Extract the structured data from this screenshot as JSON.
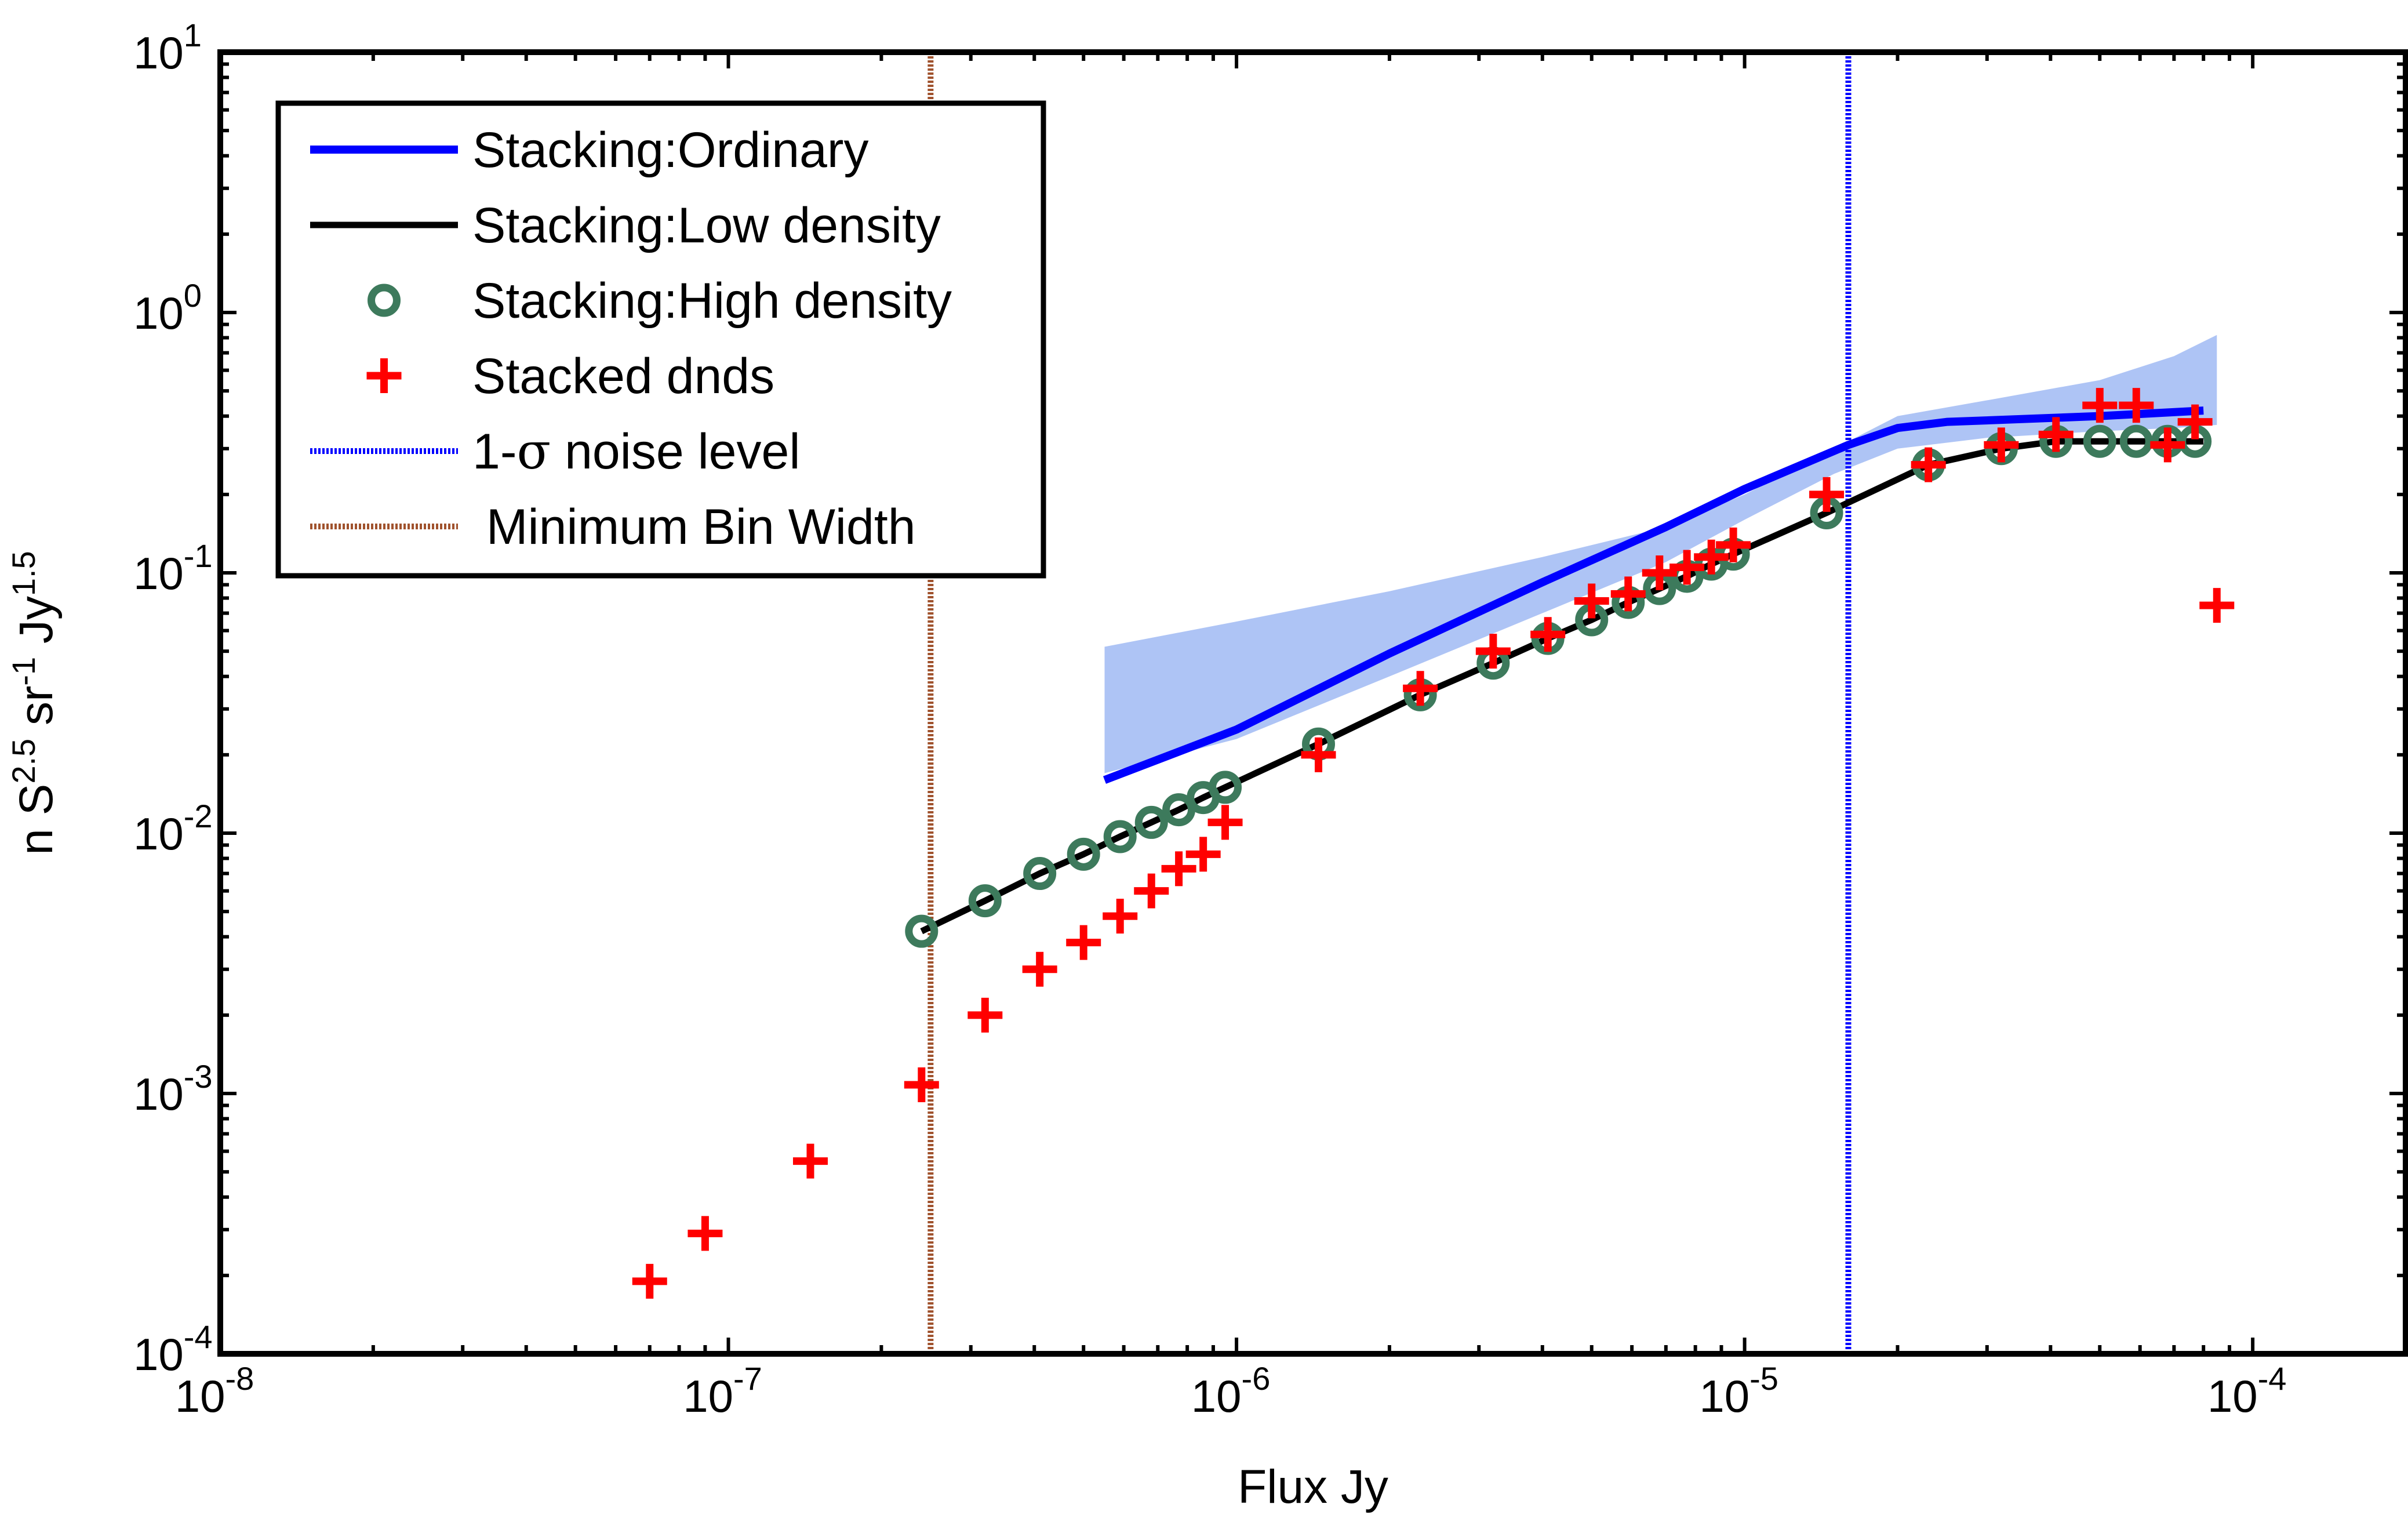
{
  "chart_data": {
    "type": "scatter",
    "title": "",
    "xlabel": "Flux Jy",
    "ylabel_parts": [
      "n S",
      "2.5",
      " sr",
      "-1",
      " Jy",
      "1.5"
    ],
    "xscale": "log",
    "yscale": "log",
    "xlim": [
      1e-08,
      0.0002
    ],
    "ylim": [
      0.0001,
      10
    ],
    "legend_position": "top-left",
    "x_ticks": [
      {
        "base": "10",
        "exp": "-8",
        "value": 1e-08
      },
      {
        "base": "10",
        "exp": "-7",
        "value": 1e-07
      },
      {
        "base": "10",
        "exp": "-6",
        "value": 1e-06
      },
      {
        "base": "10",
        "exp": "-5",
        "value": 1e-05
      },
      {
        "base": "10",
        "exp": "-4",
        "value": 0.0001
      }
    ],
    "y_ticks": [
      {
        "base": "10",
        "exp": "-4",
        "value": 0.0001
      },
      {
        "base": "10",
        "exp": "-3",
        "value": 0.001
      },
      {
        "base": "10",
        "exp": "-2",
        "value": 0.01
      },
      {
        "base": "10",
        "exp": "-1",
        "value": 0.1
      },
      {
        "base": "10",
        "exp": "0",
        "value": 1
      },
      {
        "base": "10",
        "exp": "1",
        "value": 10
      }
    ],
    "band": {
      "name": "Stacking:Ordinary uncertainty",
      "color": "#aec4f5",
      "x": [
        5.5e-07,
        1e-06,
        2e-06,
        4e-06,
        7e-06,
        1e-05,
        1.5e-05,
        2e-05,
        3e-05,
        5e-05,
        7e-05,
        8.5e-05
      ],
      "upper": [
        0.052,
        0.065,
        0.085,
        0.115,
        0.15,
        0.2,
        0.3,
        0.4,
        0.46,
        0.55,
        0.68,
        0.82
      ],
      "lower": [
        0.017,
        0.023,
        0.04,
        0.07,
        0.11,
        0.16,
        0.24,
        0.3,
        0.33,
        0.35,
        0.36,
        0.37
      ]
    },
    "series": [
      {
        "name": "Stacking:Ordinary",
        "kind": "line",
        "color": "#0000ff",
        "x": [
          5.5e-07,
          1e-06,
          2e-06,
          4e-06,
          7e-06,
          1e-05,
          1.6e-05,
          2e-05,
          2.5e-05,
          5e-05,
          8e-05
        ],
        "values": [
          0.016,
          0.025,
          0.049,
          0.092,
          0.15,
          0.21,
          0.31,
          0.36,
          0.38,
          0.4,
          0.42
        ]
      },
      {
        "name": "Stacking:Low density",
        "kind": "line",
        "color": "#000000",
        "x": [
          2.4e-07,
          3.2e-07,
          4.1e-07,
          5e-07,
          5.9e-07,
          6.8e-07,
          7.7e-07,
          8.6e-07,
          9.5e-07,
          1.45e-06,
          2.3e-06,
          3.2e-06,
          4.1e-06,
          5e-06,
          5.9e-06,
          6.8e-06,
          7.7e-06,
          8.6e-06,
          9.5e-06,
          1.45e-05,
          2.3e-05,
          3.2e-05,
          4.1e-05,
          5e-05,
          5.9e-05,
          6.8e-05,
          8e-05
        ],
        "values": [
          0.0042,
          0.0055,
          0.007,
          0.0083,
          0.0097,
          0.011,
          0.0123,
          0.0137,
          0.015,
          0.022,
          0.034,
          0.045,
          0.056,
          0.066,
          0.077,
          0.087,
          0.097,
          0.108,
          0.118,
          0.17,
          0.26,
          0.3,
          0.32,
          0.32,
          0.32,
          0.32,
          0.32
        ]
      },
      {
        "name": "Stacking:High density",
        "kind": "circle",
        "color": "#3d7a5c",
        "x": [
          2.4e-07,
          3.2e-07,
          4.1e-07,
          5e-07,
          5.9e-07,
          6.8e-07,
          7.7e-07,
          8.6e-07,
          9.5e-07,
          1.45e-06,
          2.3e-06,
          3.2e-06,
          4.1e-06,
          5e-06,
          5.9e-06,
          6.8e-06,
          7.7e-06,
          8.6e-06,
          9.5e-06,
          1.45e-05,
          2.3e-05,
          3.2e-05,
          4.1e-05,
          5e-05,
          5.9e-05,
          6.8e-05,
          7.7e-05
        ],
        "values": [
          0.0042,
          0.0055,
          0.007,
          0.0083,
          0.0097,
          0.011,
          0.0123,
          0.0137,
          0.015,
          0.022,
          0.034,
          0.045,
          0.056,
          0.066,
          0.077,
          0.087,
          0.097,
          0.108,
          0.118,
          0.17,
          0.26,
          0.3,
          0.32,
          0.32,
          0.32,
          0.32,
          0.32
        ]
      },
      {
        "name": "Stacked dnds",
        "kind": "plus",
        "color": "#ff0000",
        "x": [
          7e-08,
          9e-08,
          1.45e-07,
          2.4e-07,
          3.2e-07,
          4.1e-07,
          5e-07,
          5.9e-07,
          6.8e-07,
          7.7e-07,
          8.6e-07,
          9.5e-07,
          1.45e-06,
          2.3e-06,
          3.2e-06,
          4.1e-06,
          5e-06,
          5.9e-06,
          6.8e-06,
          7.7e-06,
          8.6e-06,
          9.5e-06,
          1.45e-05,
          2.3e-05,
          3.2e-05,
          4.1e-05,
          5e-05,
          5.9e-05,
          6.8e-05,
          7.7e-05,
          8.5e-05
        ],
        "values": [
          0.00019,
          0.00029,
          0.00055,
          0.00108,
          0.002,
          0.003,
          0.0038,
          0.0048,
          0.006,
          0.0073,
          0.0083,
          0.011,
          0.02,
          0.036,
          0.05,
          0.058,
          0.078,
          0.083,
          0.1,
          0.105,
          0.115,
          0.128,
          0.2,
          0.26,
          0.31,
          0.34,
          0.44,
          0.44,
          0.31,
          0.38,
          0.075
        ]
      },
      {
        "name": "1-σ noise level",
        "kind": "vline",
        "color": "#0000ff",
        "x": 1.6e-05
      },
      {
        "name": "Minimum Bin Width",
        "kind": "vline",
        "color": "#a0522d",
        "x": 2.5e-07
      }
    ]
  },
  "legend": [
    {
      "label": "Stacking:Ordinary",
      "marker": "line",
      "color": "#0000ff"
    },
    {
      "label": "Stacking:Low density",
      "marker": "line",
      "color": "#000000"
    },
    {
      "label": "Stacking:High density",
      "marker": "circle",
      "color": "#3d7a5c"
    },
    {
      "label": "Stacked dnds",
      "marker": "plus",
      "color": "#ff0000"
    },
    {
      "label_prefix": "1-",
      "label_sigma": "σ",
      "label_suffix": " noise level",
      "marker": "dotted",
      "color": "#0000ff"
    },
    {
      "label": " Minimum Bin Width",
      "marker": "dotted",
      "color": "#a0522d"
    }
  ]
}
